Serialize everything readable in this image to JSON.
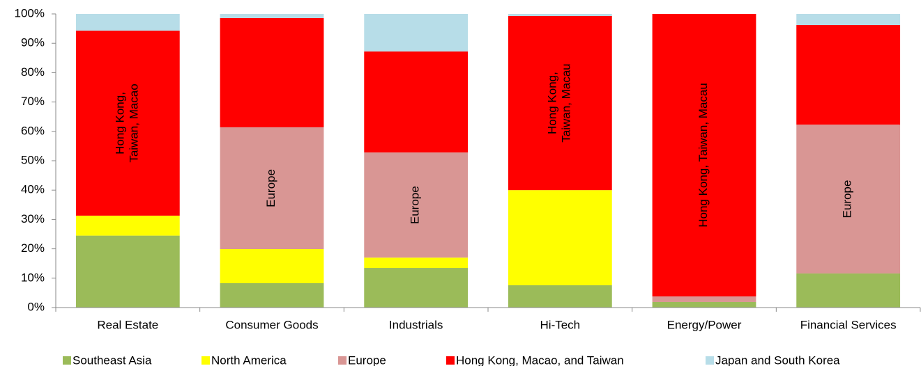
{
  "chart_data": {
    "type": "stacked_bar",
    "categories": [
      "Real Estate",
      "Consumer Goods",
      "Industrials",
      "Hi-Tech",
      "Energy/Power",
      "Financial Services"
    ],
    "series": [
      {
        "name": "Southeast Asia",
        "color": "#9bbb59",
        "values": [
          24.5,
          8.3,
          13.5,
          7.6,
          1.9,
          11.6
        ]
      },
      {
        "name": "North America",
        "color": "#ffff00",
        "values": [
          6.8,
          11.6,
          3.5,
          32.4,
          0,
          0
        ]
      },
      {
        "name": "Europe",
        "color": "#d99694",
        "values": [
          0,
          41.5,
          35.8,
          0,
          1.9,
          50.7
        ]
      },
      {
        "name": "Hong Kong, Macao, and Taiwan",
        "color": "#ff0000",
        "values": [
          63,
          37.2,
          34.4,
          59.3,
          96.2,
          33.9
        ]
      },
      {
        "name": "Japan and South Korea",
        "color": "#b7dde8",
        "values": [
          5.7,
          1.4,
          12.8,
          0.7,
          0,
          3.8
        ]
      }
    ],
    "ylim": [
      0,
      100
    ],
    "yticks": [
      {
        "value": 0,
        "label": "0%"
      },
      {
        "value": 10,
        "label": "10%"
      },
      {
        "value": 20,
        "label": "20%"
      },
      {
        "value": 30,
        "label": "30%"
      },
      {
        "value": 40,
        "label": "40%"
      },
      {
        "value": 50,
        "label": "50%"
      },
      {
        "value": 60,
        "label": "60%"
      },
      {
        "value": 70,
        "label": "70%"
      },
      {
        "value": 80,
        "label": "80%"
      },
      {
        "value": 90,
        "label": "90%"
      },
      {
        "value": 100,
        "label": "100%"
      }
    ],
    "legend": "bottom",
    "annotations": [
      {
        "lines": [
          "Hong Kong,",
          "Taiwan, Macao"
        ],
        "category": "Real Estate",
        "series": "Hong Kong, Macao, and Taiwan"
      },
      {
        "lines": [
          "Europe"
        ],
        "category": "Consumer Goods",
        "series": "Europe"
      },
      {
        "lines": [
          "Europe"
        ],
        "category": "Industrials",
        "series": "Europe"
      },
      {
        "lines": [
          "Hong Kong,",
          "Taiwan, Macau"
        ],
        "category": "Hi-Tech",
        "series": "Hong Kong, Macao, and Taiwan"
      },
      {
        "lines": [
          "Hong Kong, Taiwan, Macau"
        ],
        "category": "Energy/Power",
        "series": "Hong Kong, Macao, and Taiwan"
      },
      {
        "lines": [
          "Europe"
        ],
        "category": "Financial Services",
        "series": "Europe"
      }
    ]
  }
}
